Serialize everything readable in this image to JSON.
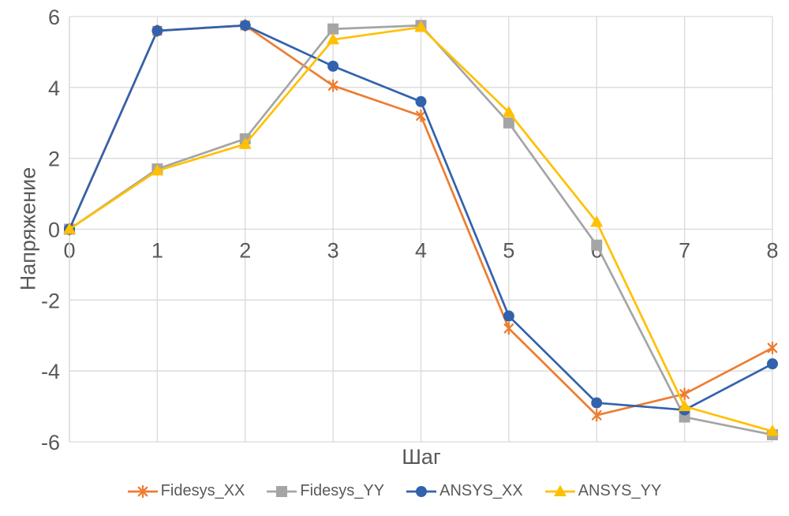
{
  "chart_data": {
    "type": "line",
    "title": "",
    "xlabel": "Шаг",
    "ylabel": "Напряжение",
    "xlim": [
      0,
      8
    ],
    "ylim": [
      -6,
      6
    ],
    "x_ticks": [
      0,
      1,
      2,
      3,
      4,
      5,
      6,
      7,
      8
    ],
    "y_ticks": [
      6,
      4,
      2,
      0,
      -2,
      -4,
      -6
    ],
    "grid": true,
    "legend_position": "bottom",
    "x": [
      0,
      1,
      2,
      3,
      4,
      5,
      6,
      7,
      8
    ],
    "series": [
      {
        "name": "Fidesys_XX",
        "color": "#ED7D31",
        "marker": "star",
        "values": [
          0,
          5.6,
          5.75,
          4.05,
          3.2,
          -2.8,
          -5.25,
          -4.65,
          -3.35
        ]
      },
      {
        "name": "Fidesys_YY",
        "color": "#A5A5A5",
        "marker": "square",
        "values": [
          0,
          1.7,
          2.55,
          5.65,
          5.75,
          3.0,
          -0.45,
          -5.3,
          -5.8
        ]
      },
      {
        "name": "ANSYS_XX",
        "color": "#3262AC",
        "marker": "circle",
        "values": [
          0,
          5.6,
          5.75,
          4.6,
          3.6,
          -2.45,
          -4.9,
          -5.1,
          -3.8
        ]
      },
      {
        "name": "ANSYS_YY",
        "color": "#FFC000",
        "marker": "triangle",
        "values": [
          0,
          1.65,
          2.4,
          5.35,
          5.7,
          3.3,
          0.2,
          -5.0,
          -5.7
        ]
      }
    ],
    "colors": {
      "gridline": "#D9D9D9",
      "axis_text": "#595959"
    }
  }
}
